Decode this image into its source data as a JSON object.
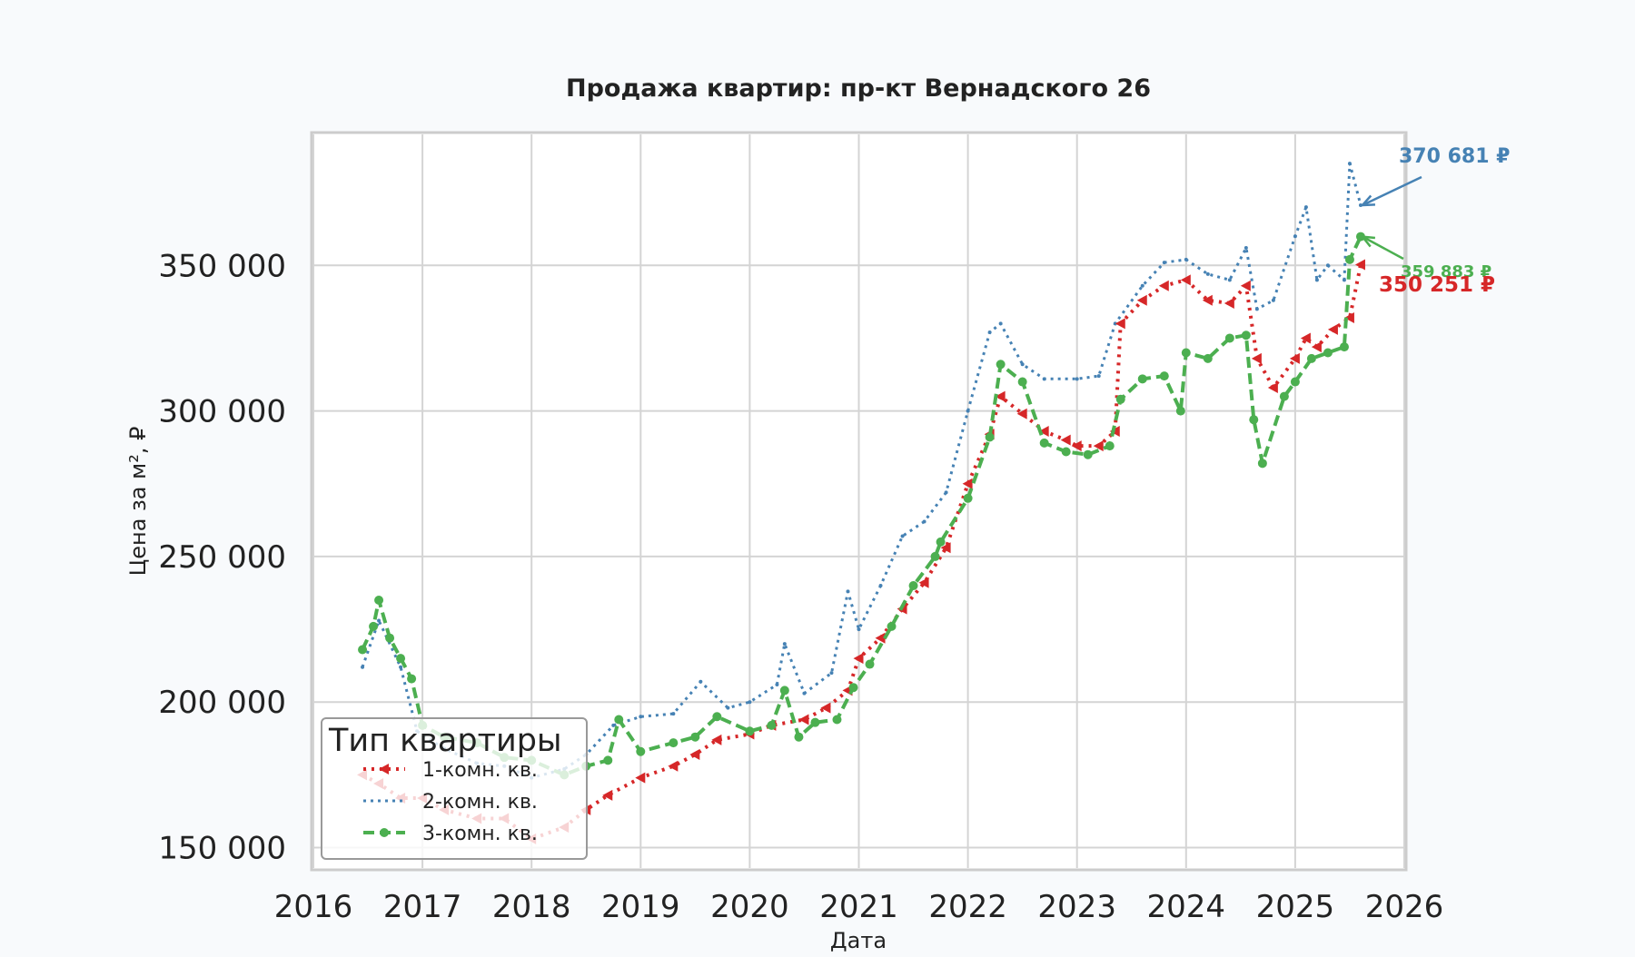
{
  "chart_data": {
    "type": "line",
    "title": "Продажа квартир: пр-кт Вернадского 26",
    "xlabel": "Дата",
    "ylabel": "Цена за м², ₽",
    "xlim": [
      2016,
      2026
    ],
    "ylim": [
      143000,
      395000
    ],
    "x_ticks": [
      "2016",
      "2017",
      "2018",
      "2019",
      "2020",
      "2021",
      "2022",
      "2023",
      "2024",
      "2025",
      "2026"
    ],
    "y_ticks": [
      "150 000",
      "200 000",
      "250 000",
      "300 000",
      "350 000"
    ],
    "grid": true,
    "legend": {
      "title": "Тип квартиры",
      "placement": "lower-left",
      "entries": [
        "1-комн. кв.",
        "2-комн. кв.",
        "3-комн. кв."
      ]
    },
    "colors": {
      "s1": "#d62728",
      "s2": "#4682b4",
      "s3": "#4caf50"
    },
    "series": [
      {
        "name": "1-комн. кв.",
        "style": "dotted with triangle markers",
        "x": [
          2016.45,
          2016.6,
          2016.8,
          2017.0,
          2017.2,
          2017.5,
          2017.75,
          2018.0,
          2018.3,
          2018.5,
          2018.7,
          2019.0,
          2019.3,
          2019.5,
          2019.7,
          2020.0,
          2020.2,
          2020.5,
          2020.7,
          2020.9,
          2021.0,
          2021.2,
          2021.4,
          2021.6,
          2021.8,
          2022.0,
          2022.2,
          2022.3,
          2022.5,
          2022.7,
          2022.9,
          2023.0,
          2023.2,
          2023.35,
          2023.4,
          2023.6,
          2023.8,
          2024.0,
          2024.2,
          2024.4,
          2024.55,
          2024.65,
          2024.8,
          2025.0,
          2025.1,
          2025.2,
          2025.35,
          2025.5,
          2025.6
        ],
        "values": [
          175000,
          172000,
          167000,
          167000,
          163000,
          160000,
          160000,
          153000,
          157000,
          163000,
          168000,
          174000,
          178000,
          182000,
          187000,
          189000,
          192000,
          194000,
          198000,
          204000,
          215000,
          222000,
          232000,
          241000,
          253000,
          275000,
          292000,
          305000,
          299000,
          293000,
          290000,
          288000,
          288000,
          293000,
          330000,
          338000,
          343000,
          345000,
          338000,
          337000,
          343000,
          318000,
          308000,
          318000,
          325000,
          322000,
          328000,
          332000,
          350251
        ]
      },
      {
        "name": "2-комн. кв.",
        "style": "dotted",
        "x": [
          2016.45,
          2016.6,
          2016.8,
          2016.95,
          2017.2,
          2017.5,
          2017.75,
          2018.0,
          2018.3,
          2018.5,
          2018.75,
          2019.0,
          2019.3,
          2019.55,
          2019.8,
          2020.0,
          2020.25,
          2020.32,
          2020.5,
          2020.75,
          2020.9,
          2021.0,
          2021.2,
          2021.4,
          2021.6,
          2021.8,
          2022.0,
          2022.2,
          2022.3,
          2022.5,
          2022.7,
          2023.0,
          2023.2,
          2023.35,
          2023.6,
          2023.8,
          2024.0,
          2024.2,
          2024.4,
          2024.55,
          2024.65,
          2024.8,
          2025.0,
          2025.1,
          2025.2,
          2025.3,
          2025.45,
          2025.5,
          2025.6
        ],
        "values": [
          212000,
          228000,
          212000,
          190000,
          184000,
          179000,
          178000,
          174000,
          177000,
          182000,
          192000,
          195000,
          196000,
          207000,
          198000,
          200000,
          206000,
          220000,
          203000,
          210000,
          238000,
          225000,
          240000,
          257000,
          262000,
          272000,
          300000,
          327000,
          330000,
          316000,
          311000,
          311000,
          312000,
          330000,
          343000,
          351000,
          352000,
          347000,
          345000,
          356000,
          335000,
          338000,
          360000,
          370000,
          345000,
          350000,
          345000,
          385000,
          370681
        ]
      },
      {
        "name": "3-комн. кв.",
        "style": "dashed with circle markers",
        "x": [
          2016.45,
          2016.55,
          2016.6,
          2016.7,
          2016.8,
          2016.9,
          2017.0,
          2017.2,
          2017.5,
          2017.75,
          2018.0,
          2018.3,
          2018.5,
          2018.7,
          2018.8,
          2019.0,
          2019.3,
          2019.5,
          2019.7,
          2020.0,
          2020.2,
          2020.32,
          2020.45,
          2020.6,
          2020.8,
          2020.95,
          2021.1,
          2021.3,
          2021.5,
          2021.7,
          2021.75,
          2022.0,
          2022.2,
          2022.3,
          2022.5,
          2022.7,
          2022.9,
          2023.1,
          2023.3,
          2023.4,
          2023.6,
          2023.8,
          2023.95,
          2024.0,
          2024.2,
          2024.4,
          2024.55,
          2024.62,
          2024.7,
          2024.9,
          2025.0,
          2025.15,
          2025.3,
          2025.45,
          2025.5,
          2025.6
        ],
        "values": [
          218000,
          226000,
          235000,
          222000,
          215000,
          208000,
          192000,
          188000,
          186000,
          181000,
          180000,
          175000,
          178000,
          180000,
          194000,
          183000,
          186000,
          188000,
          195000,
          190000,
          192000,
          204000,
          188000,
          193000,
          194000,
          205000,
          213000,
          226000,
          240000,
          250000,
          255000,
          270000,
          291000,
          316000,
          310000,
          289000,
          286000,
          285000,
          288000,
          304000,
          311000,
          312000,
          300000,
          320000,
          318000,
          325000,
          326000,
          297000,
          282000,
          305000,
          310000,
          318000,
          320000,
          322000,
          352000,
          359883
        ]
      }
    ],
    "annotations": [
      {
        "series": "2-комн. кв.",
        "text": "370 681 ₽",
        "x": 2025.6,
        "y": 370681
      },
      {
        "series": "3-комн. кв.",
        "text": "359 883 ₽",
        "x": 2025.6,
        "y": 359883
      },
      {
        "series": "1-комн. кв.",
        "text": "350 251 ₽",
        "x": 2025.6,
        "y": 350251
      }
    ]
  }
}
